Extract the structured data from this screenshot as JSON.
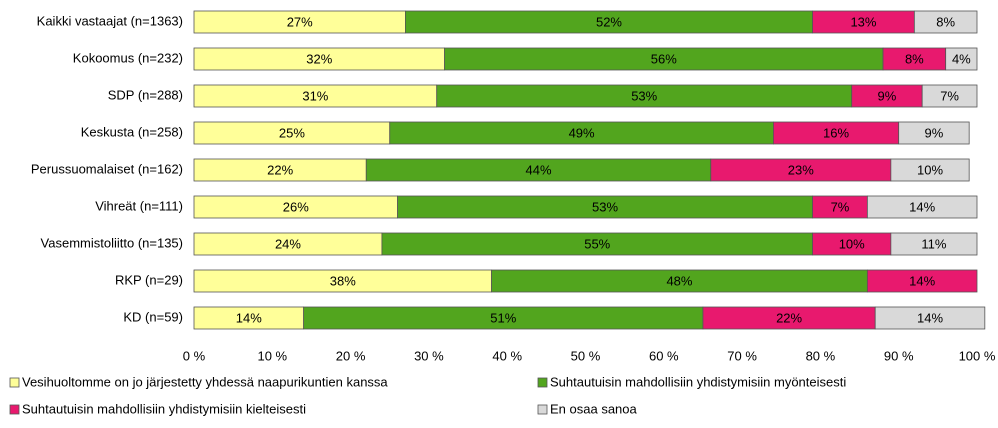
{
  "chart_data": {
    "type": "stacked_bar_horizontal",
    "categories": [
      "Kaikki vastaajat (n=1363)",
      "Kokoomus (n=232)",
      "SDP (n=288)",
      "Keskusta (n=258)",
      "Perussuomalaiset (n=162)",
      "Vihreät (n=111)",
      "Vasemmistoliitto (n=135)",
      "RKP (n=29)",
      "KD (n=59)"
    ],
    "series": [
      {
        "name": "Vesihuoltomme on jo järjestetty yhdessä naapurikuntien kanssa",
        "color": "#ffff99",
        "values": [
          27,
          32,
          31,
          25,
          22,
          26,
          24,
          38,
          14
        ],
        "value_labels": [
          "27%",
          "32%",
          "31%",
          "25%",
          "22%",
          "26%",
          "24%",
          "38%",
          "14%"
        ]
      },
      {
        "name": "Suhtautuisin mahdollisiin yhdistymisiin myönteisesti",
        "color": "#52a51e",
        "values": [
          52,
          56,
          53,
          49,
          44,
          53,
          55,
          48,
          51
        ],
        "value_labels": [
          "52%",
          "56%",
          "53%",
          "49%",
          "44%",
          "53%",
          "55%",
          "48%",
          "51%"
        ]
      },
      {
        "name": "Suhtautuisin mahdollisiin yhdistymisiin kielteisesti",
        "color": "#e8196e",
        "values": [
          13,
          8,
          9,
          16,
          23,
          7,
          10,
          14,
          22
        ],
        "value_labels": [
          "13%",
          "8%",
          "9%",
          "16%",
          "23%",
          "7%",
          "10%",
          "14%",
          "22%"
        ]
      },
      {
        "name": "En osaa sanoa",
        "color": "#d9d9d9",
        "values": [
          8,
          4,
          7,
          9,
          10,
          14,
          11,
          null,
          14
        ],
        "value_labels": [
          "8%",
          "4%",
          "7%",
          "9%",
          "10%",
          "14%",
          "11%",
          null,
          "14%"
        ]
      }
    ],
    "xlim": [
      0,
      100
    ],
    "xticks": [
      {
        "value": 0,
        "label": "0 %"
      },
      {
        "value": 10,
        "label": "10 %"
      },
      {
        "value": 20,
        "label": "20 %"
      },
      {
        "value": 30,
        "label": "30 %"
      },
      {
        "value": 40,
        "label": "40 %"
      },
      {
        "value": 50,
        "label": "50 %"
      },
      {
        "value": 60,
        "label": "60 %"
      },
      {
        "value": 70,
        "label": "70 %"
      },
      {
        "value": 80,
        "label": "80 %"
      },
      {
        "value": 90,
        "label": "90 %"
      },
      {
        "value": 100,
        "label": "100 %"
      }
    ],
    "grid": false,
    "legend": "bottom"
  }
}
